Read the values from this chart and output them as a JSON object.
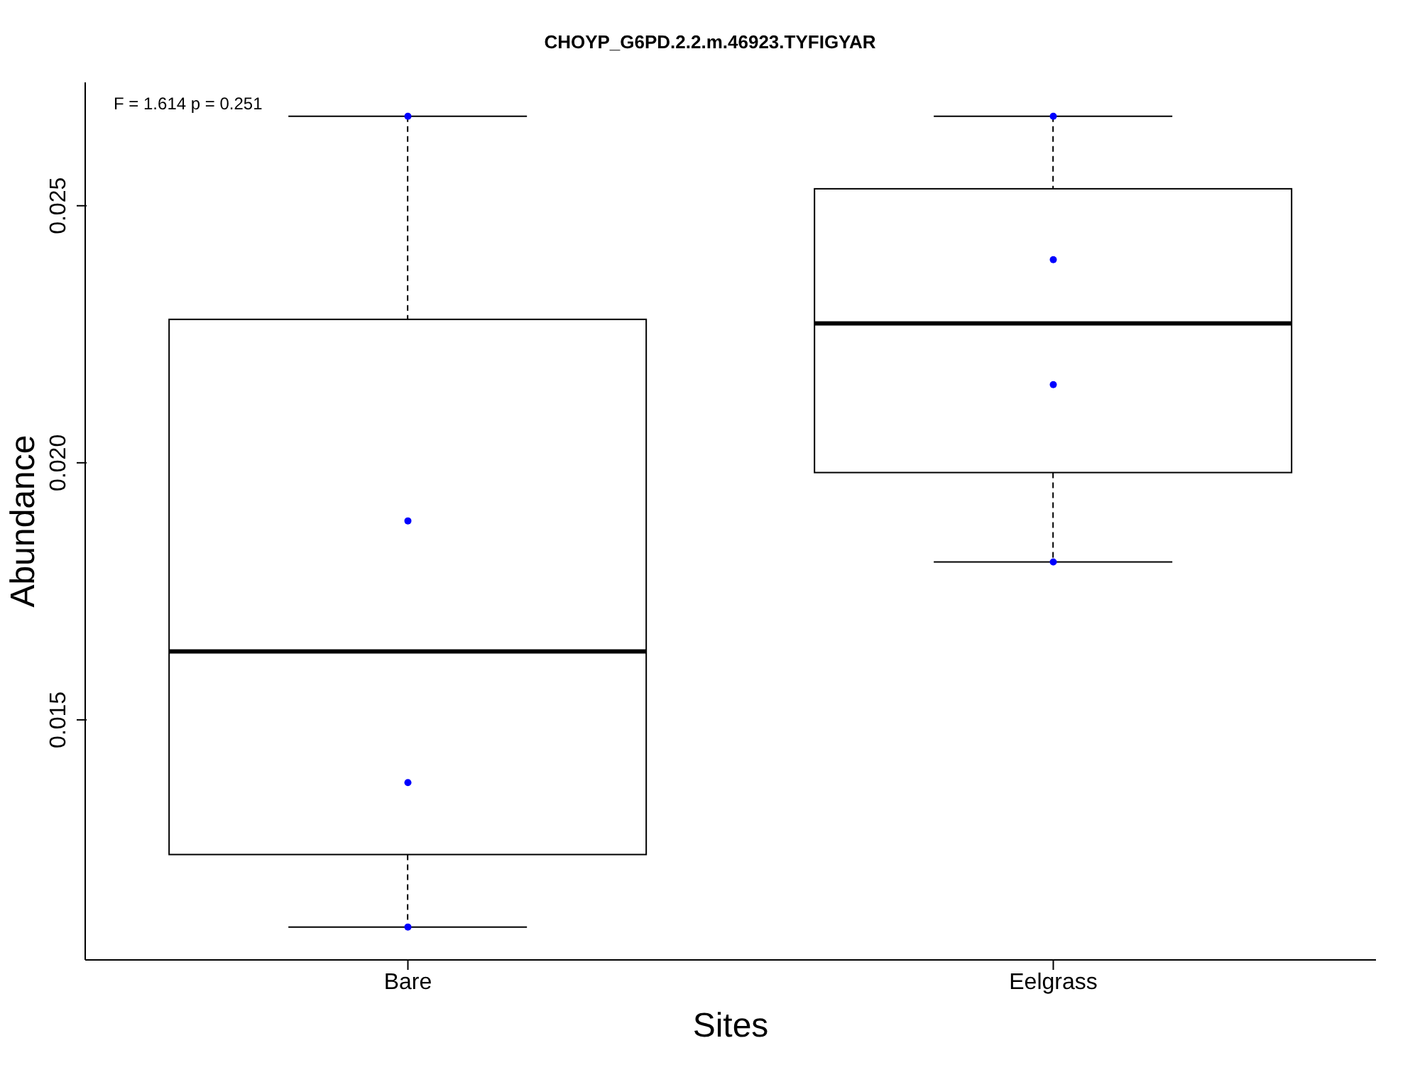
{
  "chart_data": {
    "type": "box",
    "title": "CHOYP_G6PD.2.2.m.46923.TYFIGYAR",
    "xlabel": "Sites",
    "ylabel": "Abundance",
    "categories": [
      "Bare",
      "Eelgrass"
    ],
    "boxes": [
      {
        "low": 0.01097,
        "q1": 0.01238,
        "median": 0.01633,
        "q3": 0.02279,
        "high": 0.02674
      },
      {
        "low": 0.01807,
        "q1": 0.01981,
        "median": 0.02271,
        "q3": 0.02533,
        "high": 0.02674
      }
    ],
    "series": [
      {
        "type": "scatter",
        "color": "#0000ff",
        "marker": "circle",
        "x": [
          "Bare",
          "Bare",
          "Bare",
          "Bare",
          "Eelgrass",
          "Eelgrass",
          "Eelgrass",
          "Eelgrass"
        ],
        "values": [
          0.02674,
          0.01887,
          0.01378,
          0.01097,
          0.02674,
          0.02395,
          0.02152,
          0.01807
        ]
      }
    ],
    "ylim": [
      0.01033,
      0.0274
    ],
    "yticks": [
      0.015,
      {
        "value": 0.02,
        "label": "0.020"
      },
      0.025
    ],
    "annotations": [
      "F = 1.614 p = 0.251"
    ]
  }
}
